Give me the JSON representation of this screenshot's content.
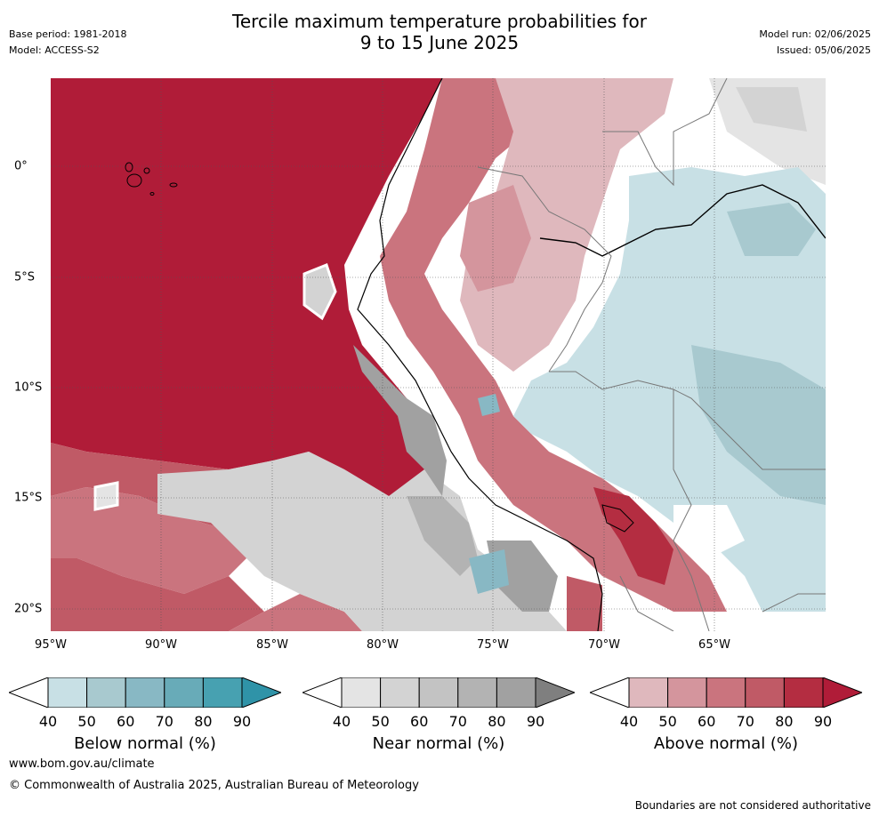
{
  "title_line1": "Tercile maximum temperature probabilities for",
  "title_line2": "9 to 15 June 2025",
  "meta_left": {
    "base_period": "Base period: 1981-2018",
    "model": "Model: ACCESS-S2"
  },
  "meta_right": {
    "model_run": "Model run: 02/06/2025",
    "issued": "Issued: 05/06/2025"
  },
  "axes": {
    "lon_labels": [
      "95°W",
      "90°W",
      "85°W",
      "80°W",
      "75°W",
      "70°W",
      "65°W"
    ],
    "lat_labels": [
      "0°",
      "5°S",
      "10°S",
      "15°S",
      "20°S"
    ]
  },
  "colorbars": [
    {
      "title": "Below normal (%)",
      "ticks": [
        "40",
        "50",
        "60",
        "70",
        "80",
        "90"
      ],
      "colors": [
        "#ffffff",
        "#c8e0e5",
        "#a8c9cf",
        "#88b8c4",
        "#68abb8",
        "#47a1b1",
        "#2f93a8"
      ]
    },
    {
      "title": "Near normal (%)",
      "ticks": [
        "40",
        "50",
        "60",
        "70",
        "80",
        "90"
      ],
      "colors": [
        "#ffffff",
        "#e4e4e4",
        "#d3d3d3",
        "#c3c3c3",
        "#b3b3b3",
        "#a1a1a1",
        "#7f7f7f"
      ]
    },
    {
      "title": "Above normal (%)",
      "ticks": [
        "40",
        "50",
        "60",
        "70",
        "80",
        "90"
      ],
      "colors": [
        "#ffffff",
        "#dfb8bd",
        "#d4959d",
        "#ca747e",
        "#c05a66",
        "#b42d41",
        "#b01c38"
      ]
    }
  ],
  "footer": {
    "website": "www.bom.gov.au/climate",
    "copyright": "© Commonwealth of Australia 2025, Australian Bureau of Meteorology",
    "disclaimer": "Boundaries are not considered authoritative"
  }
}
